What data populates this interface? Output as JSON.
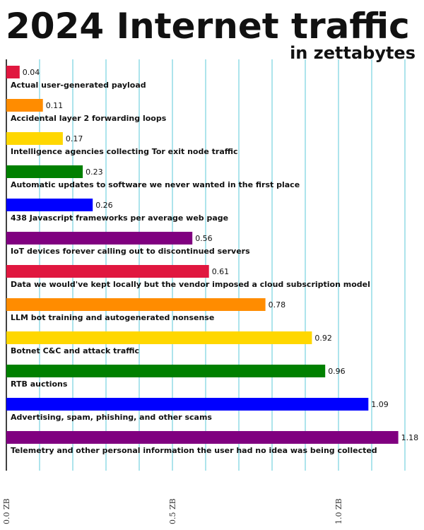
{
  "title": "2024 Internet traffic",
  "subtitle": "in zettabytes",
  "chart_data": {
    "type": "bar",
    "orientation": "horizontal",
    "title": "2024 Internet traffic",
    "subtitle": "in zettabytes",
    "xlim": [
      0,
      1.2
    ],
    "grid": true,
    "x_ticks": [
      {
        "value": 0.0,
        "label": "0.0 ZB"
      },
      {
        "value": 0.5,
        "label": "0.5 ZB"
      },
      {
        "value": 1.0,
        "label": "1.0 ZB"
      }
    ],
    "categories": [
      "Actual user-generated payload",
      "Accidental layer 2 forwarding loops",
      "Intelligence agencies collecting Tor exit node traffic",
      "Automatic updates to software we never wanted in the first place",
      "438 Javascript frameworks per average web page",
      "IoT devices forever calling out to discontinued servers",
      "Data we would've kept locally but the vendor imposed a cloud subscription model",
      "LLM bot training and autogenerated nonsense",
      "Botnet C&C and attack traffic",
      "RTB auctions",
      "Advertising, spam, phishing, and other scams",
      "Telemetry and other personal information the user had no idea was being collected"
    ],
    "values": [
      0.04,
      0.11,
      0.17,
      0.23,
      0.26,
      0.56,
      0.61,
      0.78,
      0.92,
      0.96,
      1.09,
      1.18
    ],
    "value_labels": [
      "0.04",
      "0.11",
      "0.17",
      "0.23",
      "0.26",
      "0.56",
      "0.61",
      "0.78",
      "0.92",
      "0.96",
      "1.09",
      "1.18"
    ],
    "colors": [
      "#e0173f",
      "#ff8c00",
      "#ffd700",
      "#008000",
      "#0000ff",
      "#800080",
      "#e0173f",
      "#ff8c00",
      "#ffd700",
      "#008000",
      "#0000ff",
      "#800080"
    ]
  }
}
